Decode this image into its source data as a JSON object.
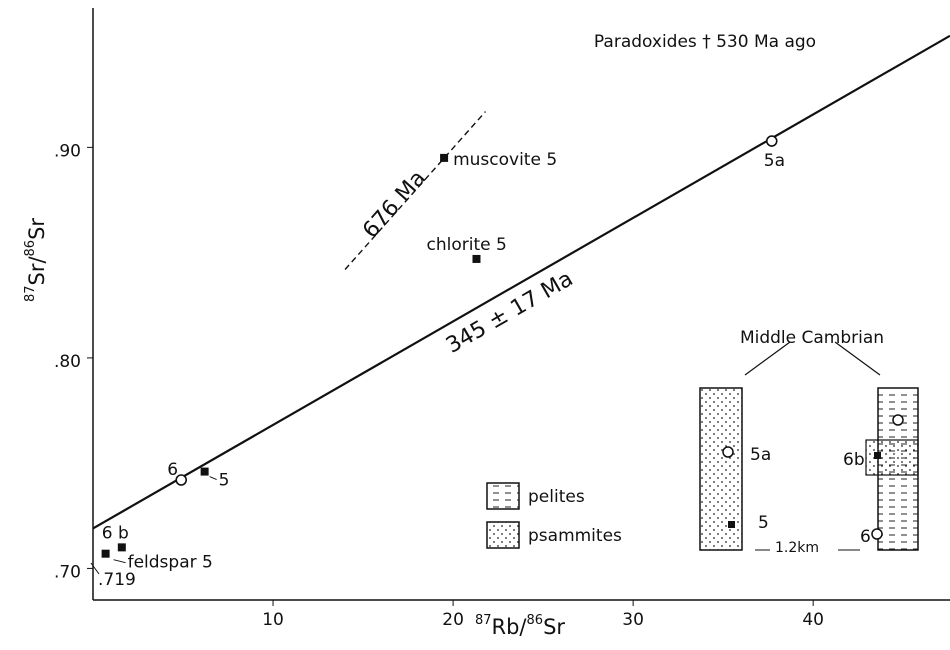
{
  "chart_data": {
    "type": "scatter",
    "annotation": "Paradoxides † 530 Ma ago",
    "x_label": [
      "87",
      "Rb/",
      "86",
      "Sr"
    ],
    "y_label": [
      "87",
      "Sr/",
      "86",
      "Sr"
    ],
    "xlim": [
      0,
      47.6
    ],
    "ylim": [
      0.685,
      0.97
    ],
    "xticks": [
      10,
      20,
      30,
      40
    ],
    "yticks": [
      {
        "value": 0.7,
        "label": ".70"
      },
      {
        "value": 0.8,
        "label": ".80"
      },
      {
        "value": 0.9,
        "label": ".90"
      }
    ],
    "points": [
      {
        "label": "feldspar 5",
        "x": 0.7,
        "y": 0.707,
        "marker": "filled"
      },
      {
        "label": "6 b",
        "x": 1.6,
        "y": 0.71,
        "marker": "filled"
      },
      {
        "label": "6",
        "x": 4.9,
        "y": 0.742,
        "marker": "open"
      },
      {
        "label": "5",
        "x": 6.2,
        "y": 0.746,
        "marker": "filled"
      },
      {
        "label": "5a",
        "x": 37.7,
        "y": 0.903,
        "marker": "open"
      },
      {
        "label": "muscovite 5",
        "x": 19.5,
        "y": 0.895,
        "marker": "filled"
      },
      {
        "label": "chlorite 5",
        "x": 21.3,
        "y": 0.847,
        "marker": "filled"
      }
    ],
    "lines": [
      {
        "label": "345 ± 17 Ma",
        "style": "solid",
        "x": [
          0,
          47.6
        ],
        "y": [
          0.719,
          0.953
        ]
      },
      {
        "label": "676 Ma",
        "style": "dashed",
        "x": [
          14,
          21.8
        ],
        "y": [
          0.842,
          0.917
        ]
      }
    ],
    "intercept_label": ".719"
  },
  "inset": {
    "title": "Middle Cambrian",
    "left_labels": [
      "5a",
      "5"
    ],
    "right_labels": [
      "6b",
      "6"
    ],
    "scale": "1.2km",
    "legend": [
      "pelites",
      "psammites"
    ]
  }
}
